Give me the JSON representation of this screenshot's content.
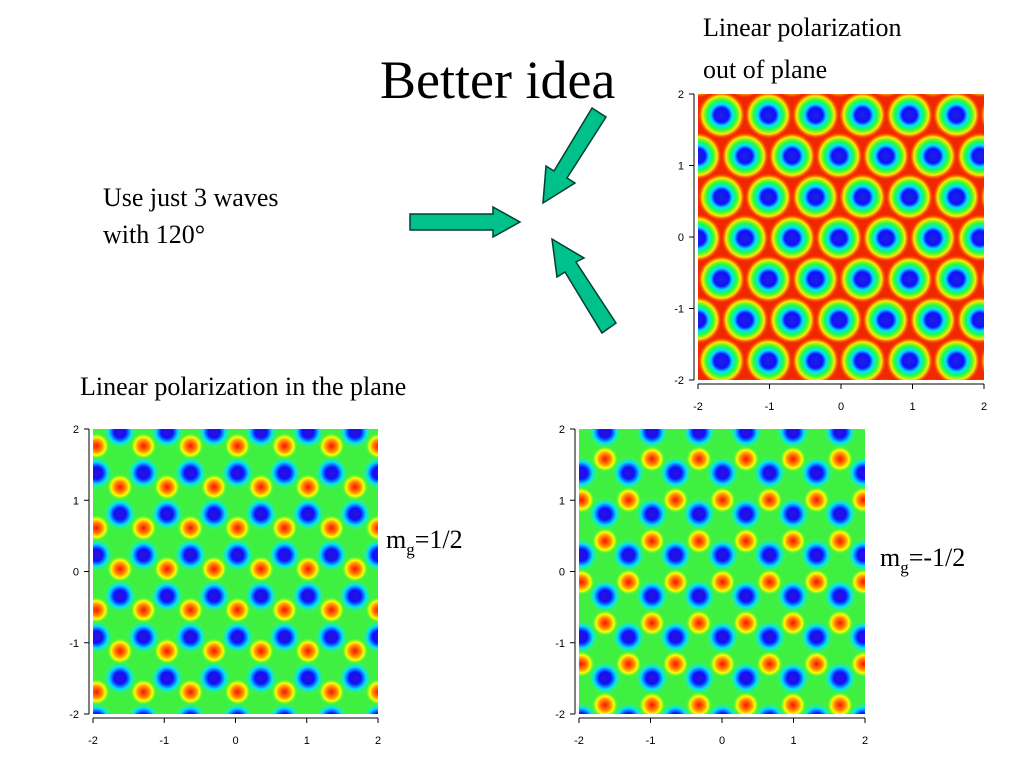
{
  "slide": {
    "title": "Better idea",
    "note_lines": [
      "Use just 3 waves",
      "with 120°"
    ],
    "top_label_lines": [
      "Linear polarization",
      "out of plane"
    ],
    "bottom_label": "Linear polarization in the plane",
    "plots": [
      {
        "xlim": [
          -2,
          2
        ],
        "ylim": [
          -2,
          2
        ],
        "xticks": [
          -2,
          -1,
          0,
          1,
          2
        ],
        "yticks": [
          -2,
          -1,
          0,
          1,
          2
        ]
      },
      {
        "xlim": [
          -2,
          2
        ],
        "ylim": [
          -2,
          2
        ],
        "xticks": [
          -2,
          -1,
          0,
          1,
          2
        ],
        "yticks": [
          -2,
          -1,
          0,
          1,
          2
        ],
        "label": {
          "base": "m",
          "sub": "g",
          "rest": "=1/2"
        }
      },
      {
        "xlim": [
          -2,
          2
        ],
        "ylim": [
          -2,
          2
        ],
        "xticks": [
          -2,
          -1,
          0,
          1,
          2
        ],
        "yticks": [
          -2,
          -1,
          0,
          1,
          2
        ],
        "label": {
          "base": "m",
          "sub": "g",
          "rest": "=-1/2"
        }
      }
    ]
  }
}
